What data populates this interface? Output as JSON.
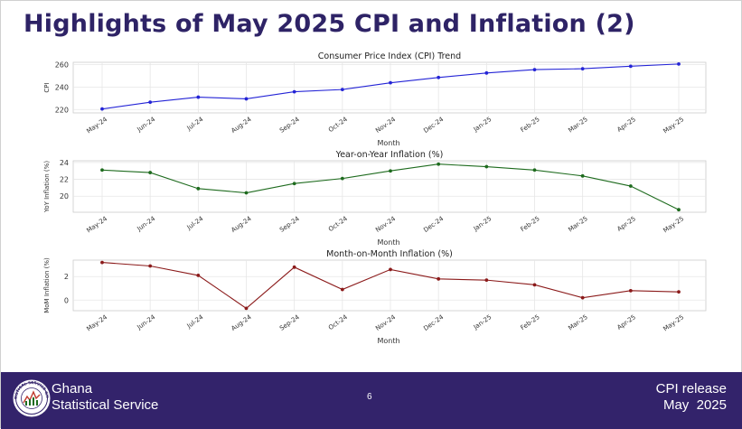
{
  "slide": {
    "title": "Highlights of May 2025 CPI and Inflation (2)"
  },
  "footer": {
    "org_line1": "Ghana",
    "org_line2": "Statistical Service",
    "page_number": "6",
    "release_line1": "CPI release",
    "release_line2": "May  2025",
    "logo_text": "STATISTICAL SERVICE GHANA"
  },
  "colors": {
    "title": "#2e2366",
    "footer_bg": "#33236b",
    "cpi_line": "#2424d6",
    "yoy_line": "#1e6b1e",
    "mom_line": "#8b1a1a",
    "grid": "#e6e6e6"
  },
  "chart_data": [
    {
      "type": "line",
      "title": "Consumer Price Index (CPI) Trend",
      "xlabel": "Month",
      "ylabel": "CPI",
      "categories": [
        "May-24",
        "Jun-24",
        "Jul-24",
        "Aug-24",
        "Sep-24",
        "Oct-24",
        "Nov-24",
        "Dec-24",
        "Jan-25",
        "Feb-25",
        "Mar-25",
        "Apr-25",
        "May-25"
      ],
      "values": [
        220.5,
        226.5,
        231.0,
        229.5,
        235.8,
        237.8,
        243.8,
        248.5,
        252.5,
        255.5,
        256.3,
        258.5,
        260.5
      ],
      "ylim": [
        217,
        262
      ],
      "yticks": [
        220,
        240,
        260
      ],
      "color": "#2424d6"
    },
    {
      "type": "line",
      "title": "Year-on-Year Inflation (%)",
      "xlabel": "Month",
      "ylabel": "YoY Inflation (%)",
      "categories": [
        "May-24",
        "Jun-24",
        "Jul-24",
        "Aug-24",
        "Sep-24",
        "Oct-24",
        "Nov-24",
        "Dec-24",
        "Jan-25",
        "Feb-25",
        "Mar-25",
        "Apr-25",
        "May-25"
      ],
      "values": [
        23.1,
        22.8,
        20.9,
        20.4,
        21.5,
        22.1,
        23.0,
        23.8,
        23.5,
        23.1,
        22.4,
        21.2,
        18.4
      ],
      "ylim": [
        18.1,
        24.2
      ],
      "yticks": [
        20,
        22,
        24
      ],
      "color": "#1e6b1e"
    },
    {
      "type": "line",
      "title": "Month-on-Month Inflation (%)",
      "xlabel": "Month",
      "ylabel": "MoM Inflation (%)",
      "categories": [
        "May-24",
        "Jun-24",
        "Jul-24",
        "Aug-24",
        "Sep-24",
        "Oct-24",
        "Nov-24",
        "Dec-24",
        "Jan-25",
        "Feb-25",
        "Mar-25",
        "Apr-25",
        "May-25"
      ],
      "values": [
        3.2,
        2.9,
        2.1,
        -0.7,
        2.8,
        0.9,
        2.6,
        1.8,
        1.7,
        1.3,
        0.2,
        0.8,
        0.7
      ],
      "ylim": [
        -0.9,
        3.4
      ],
      "yticks": [
        0,
        2
      ],
      "color": "#8b1a1a"
    }
  ]
}
